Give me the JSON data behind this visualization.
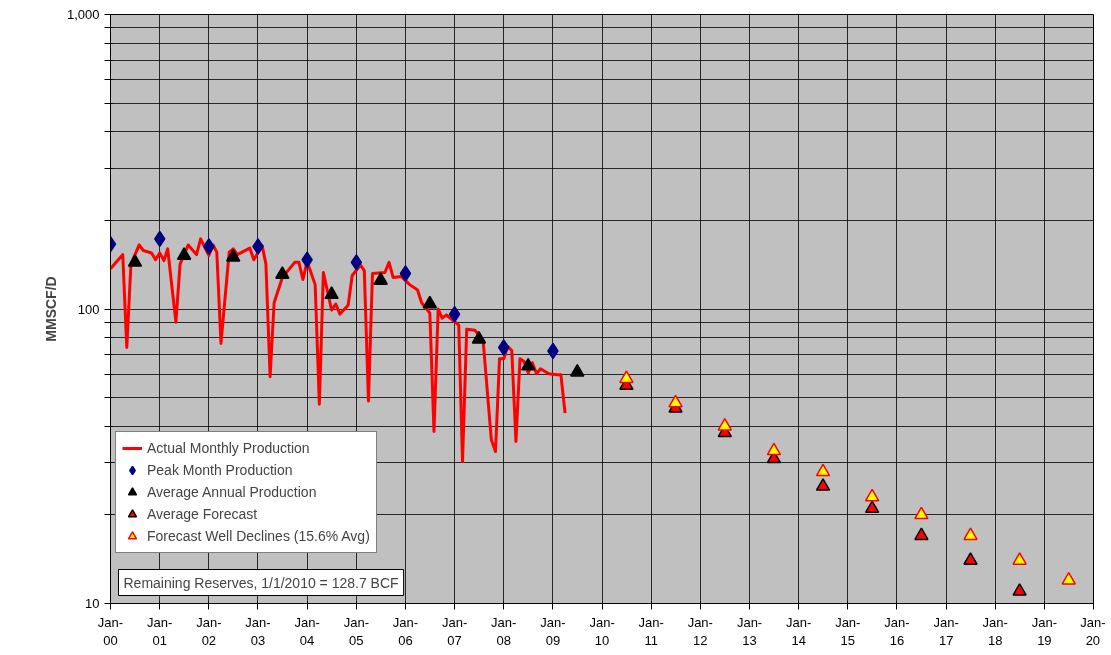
{
  "chart_data": {
    "type": "line",
    "ylabel": "MMSCF/D",
    "log": true,
    "grid": true,
    "legend": "bottom left",
    "xlim": [
      "2000-01",
      "2020-01"
    ],
    "ylim": [
      10,
      1000
    ],
    "xticks": [
      {
        "value": "2000-01",
        "label": "Jan-\n00"
      },
      {
        "value": "2001-01",
        "label": "Jan-\n01"
      },
      {
        "value": "2002-01",
        "label": "Jan-\n02"
      },
      {
        "value": "2003-01",
        "label": "Jan-\n03"
      },
      {
        "value": "2004-01",
        "label": "Jan-\n04"
      },
      {
        "value": "2005-01",
        "label": "Jan-\n05"
      },
      {
        "value": "2006-01",
        "label": "Jan-\n06"
      },
      {
        "value": "2007-01",
        "label": "Jan-\n07"
      },
      {
        "value": "2008-01",
        "label": "Jan-\n08"
      },
      {
        "value": "2009-01",
        "label": "Jan-\n09"
      },
      {
        "value": "2010-01",
        "label": "Jan-\n10"
      },
      {
        "value": "2011-01",
        "label": "Jan-\n11"
      },
      {
        "value": "2012-01",
        "label": "Jan-\n12"
      },
      {
        "value": "2013-01",
        "label": "Jan-\n13"
      },
      {
        "value": "2014-01",
        "label": "Jan-\n14"
      },
      {
        "value": "2015-01",
        "label": "Jan-\n15"
      },
      {
        "value": "2016-01",
        "label": "Jan-\n16"
      },
      {
        "value": "2017-01",
        "label": "Jan-\n17"
      },
      {
        "value": "2018-01",
        "label": "Jan-\n18"
      },
      {
        "value": "2019-01",
        "label": "Jan-\n19"
      },
      {
        "value": "2020-01",
        "label": "Jan-\n20"
      }
    ],
    "yticks": [
      10,
      {
        "value": 20,
        "label": null
      },
      {
        "value": 30,
        "label": null
      },
      {
        "value": 40,
        "label": null
      },
      {
        "value": 50,
        "label": null
      },
      {
        "value": 60,
        "label": null
      },
      {
        "value": 70,
        "label": null
      },
      {
        "value": 80,
        "label": null
      },
      {
        "value": 90,
        "label": null
      },
      100,
      {
        "value": 200,
        "label": null
      },
      {
        "value": 300,
        "label": null
      },
      {
        "value": 400,
        "label": null
      },
      {
        "value": 500,
        "label": null
      },
      {
        "value": 600,
        "label": null
      },
      {
        "value": 700,
        "label": null
      },
      {
        "value": 800,
        "label": null
      },
      {
        "value": 900,
        "label": null
      },
      {
        "value": 1000,
        "label": "1,000"
      }
    ],
    "annotations": [
      "Remaining Reserves, 1/1/2010 = 128.7 BCF"
    ],
    "series": [
      {
        "name": "Actual Monthly Production",
        "color": "#ff0000",
        "marker": "none",
        "x": [
          "2000-01",
          "2000-04",
          "2000-05",
          "2000-06",
          "2000-08",
          "2000-09",
          "2000-11",
          "2000-12",
          "2001-01",
          "2001-02",
          "2001-03",
          "2001-05",
          "2001-06",
          "2001-08",
          "2001-10",
          "2001-11",
          "2002-01",
          "2002-02",
          "2002-03",
          "2002-04",
          "2002-06",
          "2002-07",
          "2002-08",
          "2002-11",
          "2002-12",
          "2003-02",
          "2003-03",
          "2003-04",
          "2003-05",
          "2003-07",
          "2003-10",
          "2003-11",
          "2003-12",
          "2004-01",
          "2004-03",
          "2004-04",
          "2004-05",
          "2004-07",
          "2004-08",
          "2004-09",
          "2004-11",
          "2004-12",
          "2005-02",
          "2005-03",
          "2005-04",
          "2005-05",
          "2005-08",
          "2005-09",
          "2005-10",
          "2005-12",
          "2006-02",
          "2006-04",
          "2006-05",
          "2006-07",
          "2006-08",
          "2006-09",
          "2006-10",
          "2006-11",
          "2007-02",
          "2007-03",
          "2007-04",
          "2007-06",
          "2007-08",
          "2007-10",
          "2007-11",
          "2007-12",
          "2008-01",
          "2008-02",
          "2008-03",
          "2008-04",
          "2008-05",
          "2008-06",
          "2008-07",
          "2008-08",
          "2008-09",
          "2008-10",
          "2008-12",
          "2009-02",
          "2009-03",
          "2009-04"
        ],
        "values": [
          137,
          153,
          74.0,
          142,
          165,
          158,
          155,
          147,
          155,
          146,
          160,
          90.2,
          142,
          165,
          153,
          173,
          152,
          165,
          156,
          76.4,
          156,
          160,
          153,
          161,
          147,
          164,
          142,
          58.9,
          105,
          128,
          144,
          144,
          126,
          145,
          121,
          47.5,
          133,
          99.2,
          104,
          96.1,
          103,
          130,
          141,
          135,
          48.7,
          132,
          133,
          144,
          128,
          129,
          121,
          116,
          105,
          96.9,
          38.4,
          100,
          93.1,
          95.4,
          88.1,
          30.3,
          85.4,
          84.7,
          78.3,
          36.0,
          32.8,
          67.8,
          67.8,
          74.6,
          72.3,
          35.5,
          67.8,
          66.3,
          60.7,
          65.7,
          60.3,
          62.7,
          60.3,
          59.8,
          59.8,
          44.3
        ]
      },
      {
        "name": "Peak Month Production",
        "type": "scatter",
        "color": "#000080",
        "marker": "diamond",
        "x": [
          "2000-01",
          "2001-01",
          "2002-01",
          "2003-01",
          "2004-01",
          "2005-01",
          "2006-01",
          "2007-01",
          "2008-01",
          "2009-01"
        ],
        "values": [
          166,
          173,
          163,
          163,
          147,
          144,
          132,
          96,
          74,
          72
        ]
      },
      {
        "name": "Average Annual Production",
        "type": "scatter",
        "color": "#000000",
        "marker": "triangle",
        "x": [
          "2000-07",
          "2001-07",
          "2002-07",
          "2003-07",
          "2004-07",
          "2005-07",
          "2006-07",
          "2007-07",
          "2008-07",
          "2009-07"
        ],
        "values": [
          144,
          152,
          150,
          131,
          112,
          125,
          104,
          79,
          64,
          61
        ]
      },
      {
        "name": "Average Forecast",
        "type": "scatter",
        "color": "#ff0000",
        "marker": "triangle",
        "x": [
          "2010-07",
          "2011-07",
          "2012-07",
          "2013-07",
          "2014-07",
          "2015-07",
          "2016-07",
          "2017-07",
          "2018-07"
        ],
        "values": [
          55,
          46,
          38,
          31,
          25,
          21,
          17,
          14,
          11
        ]
      },
      {
        "name": "Forecast Well Declines (15.6% Avg)",
        "type": "scatter",
        "color": "#ffff00",
        "marker": "triangle",
        "x": [
          "2010-07",
          "2011-07",
          "2012-07",
          "2013-07",
          "2014-07",
          "2015-07",
          "2016-07",
          "2017-07",
          "2018-07",
          "2019-07"
        ],
        "values": [
          58,
          48,
          40,
          33,
          28,
          23,
          20,
          17,
          14,
          12
        ]
      }
    ]
  }
}
